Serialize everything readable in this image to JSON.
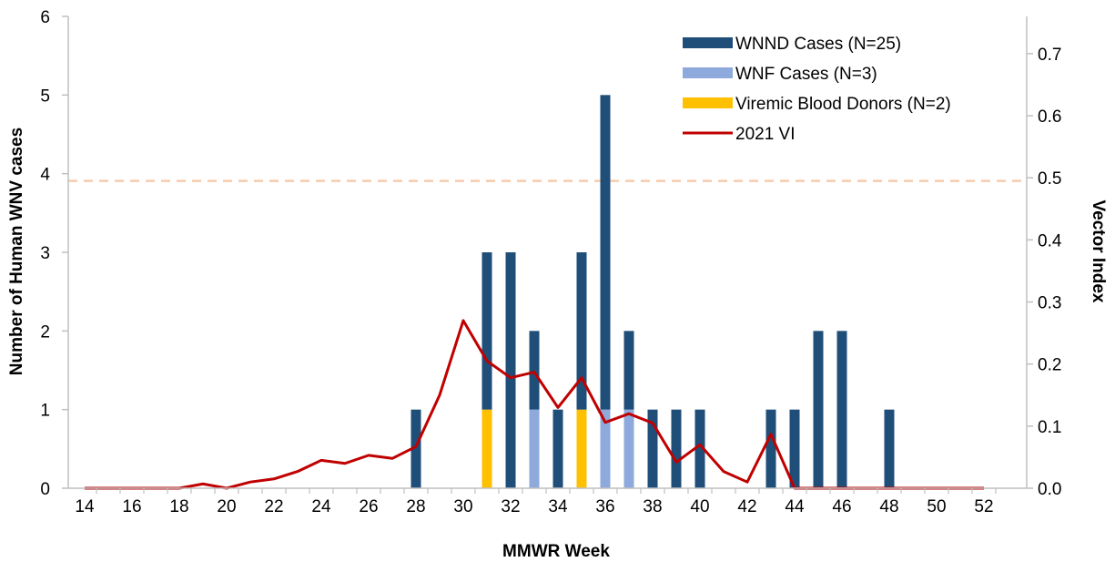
{
  "chart_data": {
    "type": "bar",
    "x_label": "MMWR Week",
    "y_label": "Number of Human WNV cases",
    "y2_label": "Vector Index",
    "x_ticks": [
      "14",
      "16",
      "18",
      "20",
      "22",
      "24",
      "26",
      "28",
      "30",
      "32",
      "34",
      "36",
      "38",
      "40",
      "42",
      "44",
      "46",
      "48",
      "50",
      "52"
    ],
    "y_ticks": [
      "0",
      "1",
      "2",
      "3",
      "4",
      "5",
      "6"
    ],
    "y2_ticks": [
      "0.0",
      "0.1",
      "0.2",
      "0.3",
      "0.4",
      "0.5",
      "0.6",
      "0.7"
    ],
    "x_range": [
      14,
      52
    ],
    "y_range": [
      0,
      6
    ],
    "y2_range": [
      0,
      0.76
    ],
    "stacked": true,
    "series": [
      {
        "name": "Viremic Blood Donors (N=2)",
        "color": "#FFC000",
        "data": [
          [
            31,
            1
          ],
          [
            35,
            1
          ]
        ]
      },
      {
        "name": "WNF Cases (N=3)",
        "color": "#8EA9DB",
        "data": [
          [
            33,
            1
          ],
          [
            36,
            1
          ],
          [
            37,
            1
          ]
        ]
      },
      {
        "name": "WNND Cases (N=25)",
        "color": "#1F4E79",
        "data": [
          [
            28,
            1
          ],
          [
            31,
            2
          ],
          [
            32,
            3
          ],
          [
            33,
            1
          ],
          [
            34,
            1
          ],
          [
            35,
            2
          ],
          [
            36,
            4
          ],
          [
            37,
            1
          ],
          [
            38,
            1
          ],
          [
            39,
            1
          ],
          [
            40,
            1
          ],
          [
            43,
            1
          ],
          [
            44,
            1
          ],
          [
            45,
            2
          ],
          [
            46,
            2
          ],
          [
            48,
            1
          ]
        ]
      }
    ],
    "line": {
      "name": "2021 VI",
      "color": "#C00000",
      "axis": "secondary",
      "x": [
        14,
        15,
        16,
        17,
        18,
        19,
        20,
        21,
        22,
        23,
        24,
        25,
        26,
        27,
        28,
        29,
        30,
        31,
        32,
        33,
        34,
        35,
        36,
        37,
        38,
        39,
        40,
        41,
        42,
        43,
        44,
        45,
        46,
        47,
        48,
        49,
        50,
        51,
        52
      ],
      "y": [
        0,
        0,
        0,
        0,
        0,
        0.007,
        0,
        0.01,
        0.015,
        0.027,
        0.045,
        0.04,
        0.053,
        0.048,
        0.067,
        0.15,
        0.27,
        0.205,
        0.178,
        0.187,
        0.13,
        0.178,
        0.106,
        0.12,
        0.105,
        0.042,
        0.07,
        0.027,
        0.01,
        0.087,
        0,
        0,
        0,
        0,
        0,
        0,
        0,
        0,
        0
      ]
    },
    "reference_line": {
      "axis": "secondary",
      "value": 0.495,
      "color": "#F8CBAD"
    },
    "legend_order": [
      "WNND Cases (N=25)",
      "WNF Cases (N=3)",
      "Viremic Blood Donors (N=2)",
      "2021 VI"
    ],
    "legend_position": "top-right",
    "grid": false
  }
}
